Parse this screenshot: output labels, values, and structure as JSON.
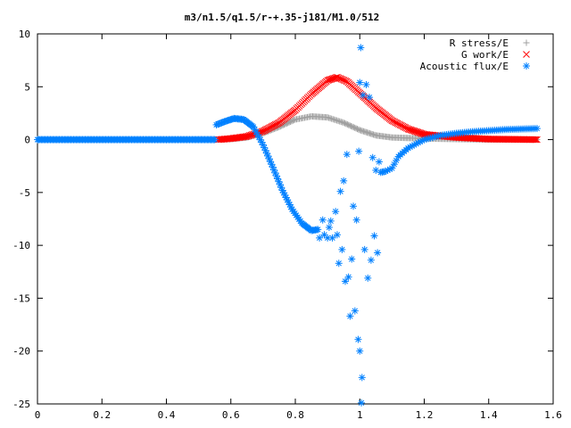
{
  "chart_data": {
    "type": "scatter",
    "title": "m3/n1.5/q1.5/r-+.35-j181/M1.0/512",
    "xlabel": "",
    "ylabel": "",
    "xlim": [
      0,
      1.6
    ],
    "ylim": [
      -25,
      10
    ],
    "xticks": [
      0,
      0.2,
      0.4,
      0.6,
      0.8,
      1,
      1.2,
      1.4,
      1.6
    ],
    "xtick_labels": [
      "0",
      "0.2",
      "0.4",
      "0.6",
      "0.8",
      "1",
      "1.2",
      "1.4",
      "1.6"
    ],
    "yticks": [
      10,
      5,
      0,
      -5,
      -10,
      -15,
      -20,
      -25
    ],
    "ytick_labels": [
      "10",
      "5",
      "0",
      "-5",
      "-10",
      "-15",
      "-20",
      "-25"
    ],
    "grid": false,
    "legend_position": "top-right",
    "series": [
      {
        "name": "R stress/E",
        "marker": "plus",
        "color": "#a0a0a0",
        "points": [
          [
            0.56,
            0.0
          ],
          [
            0.6,
            0.05
          ],
          [
            0.65,
            0.2
          ],
          [
            0.7,
            0.6
          ],
          [
            0.75,
            1.2
          ],
          [
            0.8,
            1.9
          ],
          [
            0.85,
            2.2
          ],
          [
            0.9,
            2.1
          ],
          [
            0.95,
            1.6
          ],
          [
            1.0,
            0.9
          ],
          [
            1.05,
            0.4
          ],
          [
            1.1,
            0.2
          ],
          [
            1.2,
            0.1
          ],
          [
            1.3,
            0.05
          ],
          [
            1.4,
            0.0
          ],
          [
            1.55,
            0.0
          ]
        ]
      },
      {
        "name": "G work/E",
        "marker": "cross",
        "color": "#ff0000",
        "points": [
          [
            0.56,
            0.0
          ],
          [
            0.6,
            0.1
          ],
          [
            0.65,
            0.3
          ],
          [
            0.7,
            0.8
          ],
          [
            0.75,
            1.6
          ],
          [
            0.8,
            2.8
          ],
          [
            0.85,
            4.3
          ],
          [
            0.9,
            5.6
          ],
          [
            0.93,
            5.9
          ],
          [
            0.96,
            5.5
          ],
          [
            1.0,
            4.4
          ],
          [
            1.05,
            3.0
          ],
          [
            1.1,
            1.8
          ],
          [
            1.15,
            1.0
          ],
          [
            1.2,
            0.5
          ],
          [
            1.3,
            0.2
          ],
          [
            1.4,
            0.05
          ],
          [
            1.55,
            0.0
          ]
        ]
      },
      {
        "name": "Acoustic flux/E",
        "marker": "star",
        "color": "#0080ff",
        "points": [
          [
            0.0,
            0.0
          ],
          [
            0.1,
            0.0
          ],
          [
            0.2,
            0.0
          ],
          [
            0.3,
            0.0
          ],
          [
            0.4,
            0.0
          ],
          [
            0.5,
            0.0
          ],
          [
            0.55,
            0.0
          ],
          [
            0.555,
            1.4
          ],
          [
            0.58,
            1.7
          ],
          [
            0.61,
            2.0
          ],
          [
            0.64,
            1.9
          ],
          [
            0.67,
            1.2
          ],
          [
            0.7,
            -0.5
          ],
          [
            0.73,
            -2.6
          ],
          [
            0.76,
            -4.8
          ],
          [
            0.79,
            -6.6
          ],
          [
            0.82,
            -7.9
          ],
          [
            0.85,
            -8.6
          ],
          [
            0.87,
            -8.5
          ],
          [
            0.875,
            -9.3
          ],
          [
            0.885,
            -7.6
          ],
          [
            0.89,
            -9.0
          ],
          [
            0.9,
            -9.3
          ],
          [
            0.905,
            -8.3
          ],
          [
            0.91,
            -7.7
          ],
          [
            0.915,
            -9.3
          ],
          [
            0.925,
            -6.8
          ],
          [
            0.93,
            -9.0
          ],
          [
            0.935,
            -11.7
          ],
          [
            0.94,
            -4.9
          ],
          [
            0.945,
            -10.4
          ],
          [
            0.95,
            -3.9
          ],
          [
            0.955,
            -13.4
          ],
          [
            0.96,
            -1.4
          ],
          [
            0.965,
            -13.0
          ],
          [
            0.97,
            -16.7
          ],
          [
            0.975,
            -11.3
          ],
          [
            0.98,
            -6.3
          ],
          [
            0.985,
            -16.2
          ],
          [
            0.99,
            -7.6
          ],
          [
            0.995,
            -18.9
          ],
          [
            0.997,
            -1.1
          ],
          [
            1.0,
            -20.0
          ],
          [
            1.0,
            5.4
          ],
          [
            1.003,
            8.7
          ],
          [
            1.005,
            -24.9
          ],
          [
            1.007,
            -22.5
          ],
          [
            1.01,
            4.2
          ],
          [
            1.015,
            -10.4
          ],
          [
            1.02,
            5.2
          ],
          [
            1.025,
            -13.1
          ],
          [
            1.03,
            4.0
          ],
          [
            1.035,
            -11.4
          ],
          [
            1.04,
            -1.7
          ],
          [
            1.045,
            -9.1
          ],
          [
            1.05,
            -2.9
          ],
          [
            1.055,
            -10.7
          ],
          [
            1.06,
            -2.1
          ],
          [
            1.065,
            -3.1
          ],
          [
            1.08,
            -3.0
          ],
          [
            1.1,
            -2.7
          ],
          [
            1.12,
            -1.6
          ],
          [
            1.15,
            -0.8
          ],
          [
            1.2,
            0.0
          ],
          [
            1.25,
            0.4
          ],
          [
            1.3,
            0.6
          ],
          [
            1.35,
            0.75
          ],
          [
            1.4,
            0.85
          ],
          [
            1.45,
            0.95
          ],
          [
            1.5,
            1.0
          ],
          [
            1.55,
            1.05
          ]
        ]
      }
    ]
  }
}
